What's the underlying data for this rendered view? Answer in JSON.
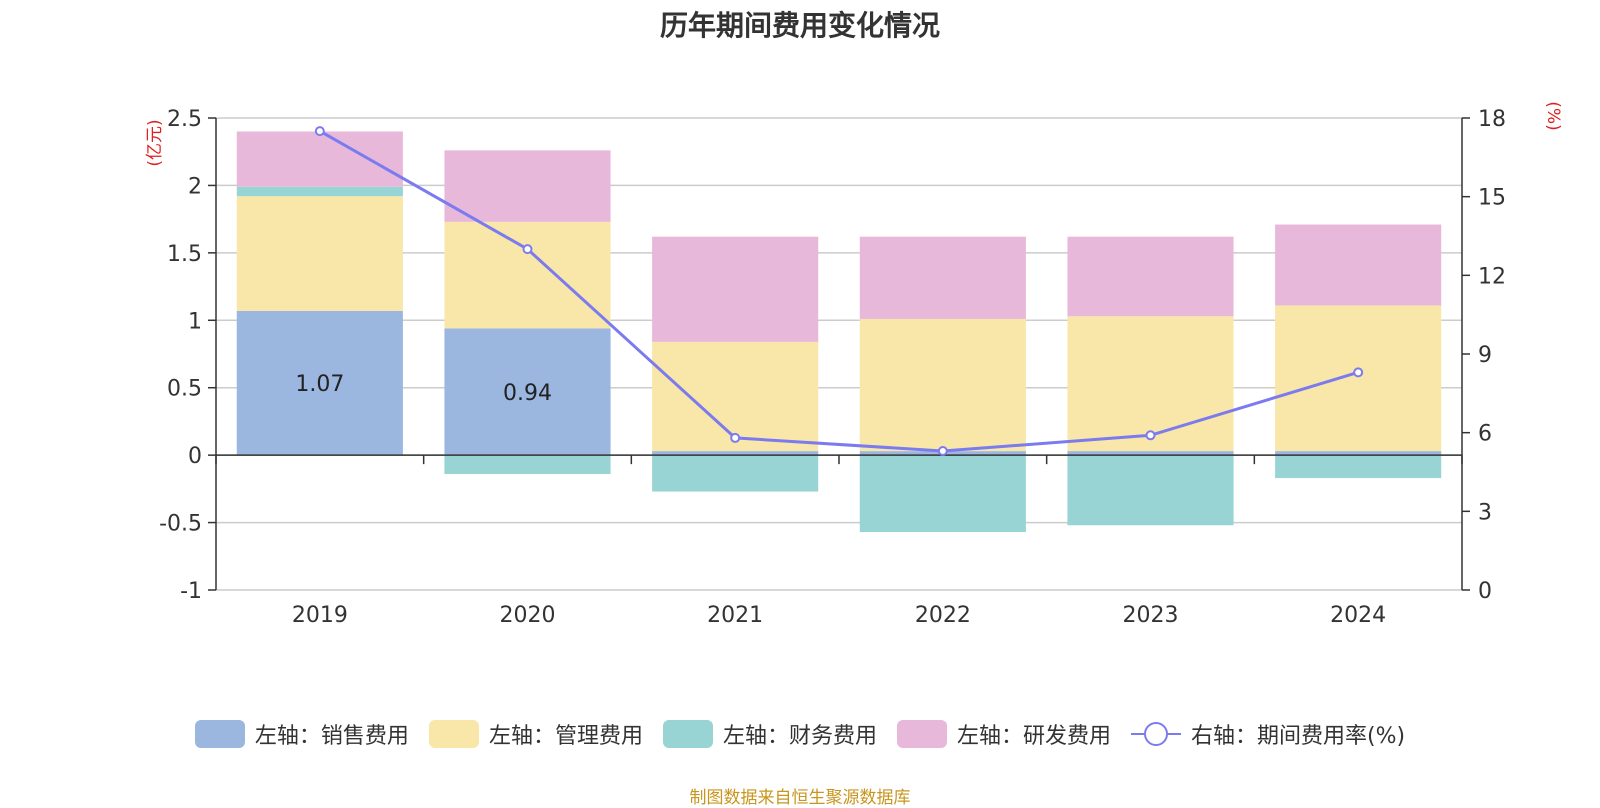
{
  "chart_data": {
    "type": "bar",
    "title": "历年期间费用变化情况",
    "categories": [
      "2019",
      "2020",
      "2021",
      "2022",
      "2023",
      "2024"
    ],
    "series": [
      {
        "name": "左轴：销售费用",
        "axis": "left",
        "color": "#9bb7e0",
        "values": [
          1.07,
          0.94,
          0.03,
          0.03,
          0.03,
          0.03
        ],
        "labels": [
          "1.07",
          "0.94",
          "",
          "",
          "",
          ""
        ]
      },
      {
        "name": "左轴：管理费用",
        "axis": "left",
        "color": "#f8e7a8",
        "values": [
          0.85,
          0.79,
          0.81,
          0.98,
          1.0,
          1.08
        ]
      },
      {
        "name": "左轴：财务费用",
        "axis": "left",
        "color": "#98d4d4",
        "values": [
          0.07,
          -0.14,
          -0.27,
          -0.57,
          -0.52,
          -0.17
        ]
      },
      {
        "name": "左轴：研发费用",
        "axis": "left",
        "color": "#e7b8d9",
        "values": [
          0.41,
          0.53,
          0.78,
          0.61,
          0.59,
          0.6
        ]
      },
      {
        "name": "右轴：期间费用率(%)",
        "axis": "right",
        "type": "line",
        "color": "#7b7bef",
        "values": [
          17.5,
          13.0,
          5.8,
          5.3,
          5.9,
          8.3
        ]
      }
    ],
    "left_axis": {
      "label": "(亿元)",
      "min": -1,
      "max": 2.5,
      "ticks": [
        "2.5",
        "2",
        "1.5",
        "1",
        "0.5",
        "0",
        "-0.5",
        "-1"
      ],
      "tick_values": [
        2.5,
        2,
        1.5,
        1,
        0.5,
        0,
        -0.5,
        -1
      ]
    },
    "right_axis": {
      "label": "(%)",
      "min": 0,
      "max": 18,
      "ticks": [
        "18",
        "15",
        "12",
        "9",
        "6",
        "3",
        "0"
      ],
      "tick_values": [
        18,
        15,
        12,
        9,
        6,
        3,
        0
      ]
    },
    "grid": true,
    "legend_position": "bottom"
  },
  "source": "制图数据来自恒生聚源数据库"
}
